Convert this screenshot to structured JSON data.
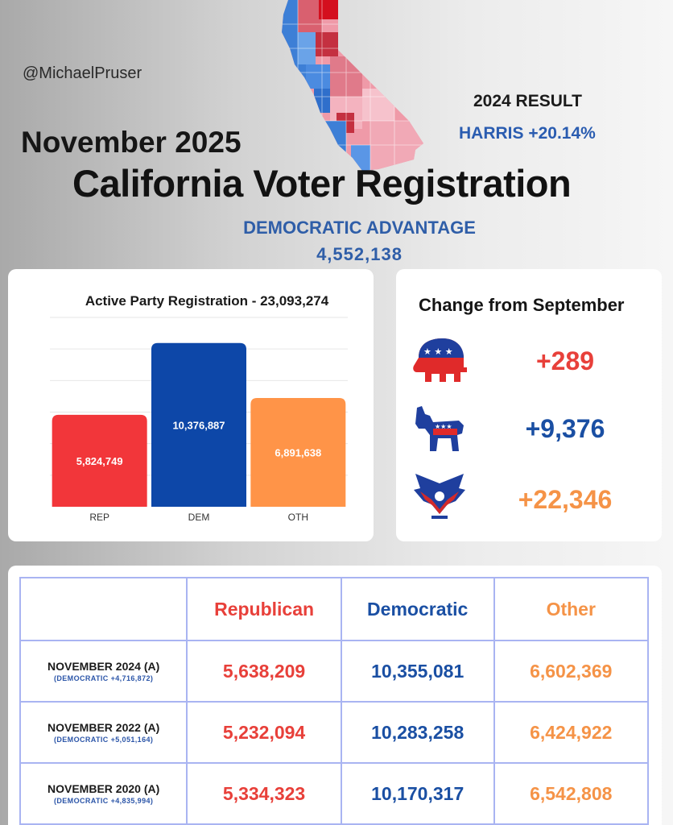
{
  "header": {
    "handle": "@MichaelPruser",
    "month": "November 2025",
    "title": "California Voter Registration",
    "result_label": "2024 RESULT",
    "result_value": "HARRIS +20.14%",
    "advantage_label": "DEMOCRATIC ADVANTAGE",
    "advantage_value": "4,552,138"
  },
  "colors": {
    "rep": "#f2363a",
    "dem": "#0d47a8",
    "oth": "#ff9448",
    "rep_text": "#e8403a",
    "dem_text": "#1a4fa3",
    "oth_text": "#f59347"
  },
  "chart_data": {
    "type": "bar",
    "title": "Active Party Registration - 23,093,274",
    "categories": [
      "REP",
      "DEM",
      "OTH"
    ],
    "values": [
      5824749,
      10376887,
      6891638
    ],
    "value_labels": [
      "5,824,749",
      "10,376,887",
      "6,891,638"
    ],
    "ylim": [
      0,
      12000000
    ],
    "grid": true,
    "xlabel": "",
    "ylabel": ""
  },
  "change": {
    "title": "Change from September",
    "items": [
      {
        "party": "republican",
        "icon": "republican-elephant-icon",
        "value": "+289"
      },
      {
        "party": "democratic",
        "icon": "democratic-donkey-icon",
        "value": "+9,376"
      },
      {
        "party": "other",
        "icon": "eagle-icon",
        "value": "+22,346"
      }
    ]
  },
  "table": {
    "headers": [
      "",
      "Republican",
      "Democratic",
      "Other"
    ],
    "rows": [
      {
        "label": "NOVEMBER 2024 (A)",
        "sub": "(DEMOCRATIC +4,716,872)",
        "rep": "5,638,209",
        "dem": "10,355,081",
        "oth": "6,602,369"
      },
      {
        "label": "NOVEMBER 2022 (A)",
        "sub": "(DEMOCRATIC +5,051,164)",
        "rep": "5,232,094",
        "dem": "10,283,258",
        "oth": "6,424,922"
      },
      {
        "label": "NOVEMBER 2020 (A)",
        "sub": "(DEMOCRATIC +4,835,994)",
        "rep": "5,334,323",
        "dem": "10,170,317",
        "oth": "6,542,808"
      }
    ]
  }
}
